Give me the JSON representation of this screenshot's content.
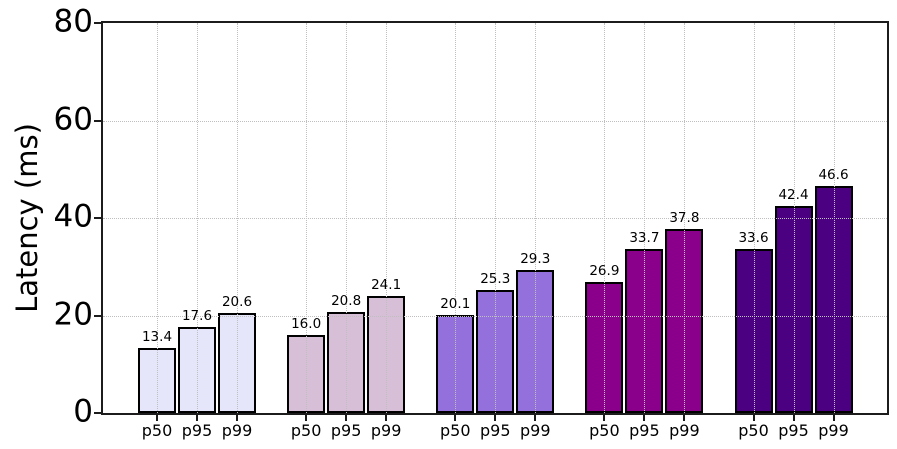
{
  "chart_data": {
    "type": "bar",
    "title": "",
    "xlabel": "",
    "ylabel": "Latency (ms)",
    "ylim": [
      0,
      80
    ],
    "yticks": [
      0,
      20,
      40,
      60,
      80
    ],
    "grid": {
      "linestyle": "dotted",
      "color": "#bfbfbf",
      "horizontal": true,
      "vertical": true,
      "drawn_above_bars": true
    },
    "bar_edge_color": "#000000",
    "categories_per_group": [
      "p50",
      "p95",
      "p99"
    ],
    "groups": [
      {
        "color": "#E6E6FA",
        "values": [
          13.4,
          17.6,
          20.6
        ]
      },
      {
        "color": "#D8BFD8",
        "values": [
          16.0,
          20.8,
          24.1
        ]
      },
      {
        "color": "#9370DB",
        "values": [
          20.1,
          25.3,
          29.3
        ]
      },
      {
        "color": "#8B008B",
        "values": [
          26.9,
          33.7,
          37.8
        ]
      },
      {
        "color": "#4B0082",
        "values": [
          33.6,
          42.4,
          46.6
        ]
      }
    ],
    "value_label_decimals": 1
  }
}
